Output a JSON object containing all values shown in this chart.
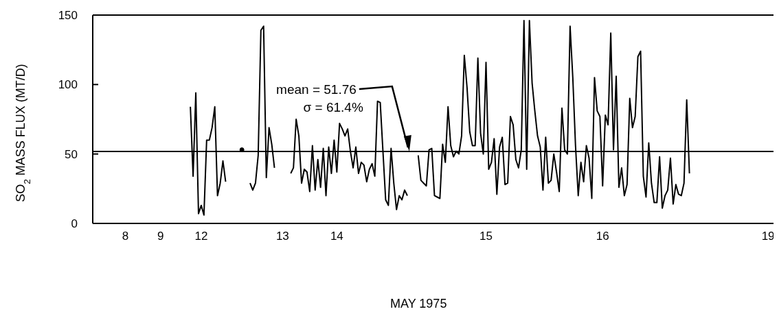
{
  "chart_data": {
    "type": "line",
    "xlabel": "MAY 1975",
    "ylabel": "SO$_{2}$ MASS FLUX (MT/D)",
    "annotations": [
      "mean = 51.76",
      "σ = 61.4%"
    ],
    "categories": [
      null,
      null,
      null,
      null,
      null,
      null,
      null,
      null,
      null,
      null,
      null,
      null,
      "8",
      null,
      null,
      null,
      null,
      null,
      null,
      null,
      null,
      null,
      null,
      null,
      null,
      "9",
      null,
      null,
      null,
      null,
      null,
      null,
      null,
      null,
      null,
      null,
      null,
      null,
      null,
      null,
      "12",
      null,
      null,
      null,
      null,
      null,
      null,
      null,
      null,
      null,
      null,
      null,
      null,
      null,
      null,
      null,
      null,
      null,
      null,
      null,
      null,
      null,
      null,
      null,
      null,
      null,
      null,
      null,
      null,
      null,
      "13",
      null,
      null,
      null,
      null,
      null,
      null,
      null,
      null,
      null,
      null,
      null,
      null,
      null,
      null,
      null,
      null,
      null,
      null,
      null,
      "14",
      null,
      null,
      null,
      null,
      null,
      null,
      null,
      null,
      null,
      null,
      null,
      null,
      null,
      null,
      null,
      null,
      null,
      null,
      null,
      null,
      null,
      null,
      null,
      null,
      null,
      null,
      null,
      null,
      null,
      null,
      null,
      null,
      null,
      null,
      null,
      null,
      null,
      null,
      null,
      null,
      null,
      null,
      null,
      null,
      null,
      null,
      null,
      null,
      null,
      null,
      null,
      null,
      null,
      null,
      "15",
      null,
      null,
      null,
      null,
      null,
      null,
      null,
      null,
      null,
      null,
      null,
      null,
      null,
      null,
      null,
      null,
      null,
      null,
      null,
      null,
      null,
      null,
      null,
      null,
      null,
      null,
      null,
      null,
      null,
      null,
      null,
      null,
      null,
      null,
      null,
      null,
      null,
      null,
      null,
      null,
      null,
      null,
      "16",
      null,
      null,
      null,
      null,
      null,
      null,
      null,
      null,
      null,
      null,
      null,
      null,
      null,
      null,
      null,
      null,
      null,
      null,
      null,
      null,
      null,
      null,
      null,
      null,
      null,
      null,
      null,
      null,
      null,
      null,
      null,
      null,
      null,
      null,
      null,
      null,
      null,
      null,
      null,
      null,
      null,
      null,
      null,
      null,
      null,
      null,
      null,
      null,
      null,
      null,
      null,
      null,
      null,
      null,
      null,
      null,
      null,
      null,
      null,
      null,
      "19",
      null,
      null
    ],
    "values": [
      null,
      null,
      null,
      null,
      null,
      null,
      null,
      null,
      null,
      null,
      null,
      null,
      null,
      null,
      null,
      null,
      null,
      null,
      null,
      null,
      null,
      null,
      null,
      null,
      null,
      null,
      null,
      null,
      null,
      null,
      null,
      null,
      null,
      null,
      null,
      null,
      84,
      34,
      94,
      7,
      13,
      6,
      60,
      60,
      69,
      84,
      20,
      29,
      45,
      30,
      null,
      null,
      null,
      null,
      null,
      53,
      null,
      null,
      29,
      24,
      29,
      49,
      139,
      142,
      33,
      69,
      57,
      40,
      null,
      null,
      null,
      null,
      null,
      36,
      40,
      75,
      63,
      29,
      39,
      37,
      23,
      56,
      24,
      46,
      26,
      54,
      20,
      55,
      36,
      60,
      37,
      72,
      68,
      63,
      68,
      52,
      40,
      55,
      36,
      44,
      42,
      30,
      39,
      43,
      34,
      88,
      87,
      52,
      17,
      13,
      54,
      29,
      10,
      20,
      17,
      24,
      20,
      null,
      null,
      null,
      49,
      31,
      29,
      27,
      53,
      54,
      20,
      19,
      18,
      57,
      44,
      84,
      56,
      48,
      52,
      50,
      63,
      121,
      98,
      66,
      56,
      56,
      119,
      65,
      50,
      116,
      39,
      44,
      61,
      21,
      55,
      62,
      28,
      29,
      77,
      71,
      46,
      40,
      53,
      146,
      39,
      146,
      101,
      81,
      63,
      55,
      24,
      62,
      29,
      31,
      50,
      37,
      23,
      83,
      53,
      50,
      142,
      105,
      56,
      20,
      44,
      30,
      56,
      47,
      18,
      105,
      81,
      77,
      27,
      78,
      71,
      137,
      53,
      106,
      26,
      40,
      20,
      28,
      90,
      69,
      77,
      120,
      124,
      34,
      19,
      58,
      29,
      15,
      15,
      48,
      11,
      20,
      24,
      47,
      14,
      28,
      21,
      20,
      29,
      89,
      36,
      null,
      null,
      null,
      null,
      null,
      null,
      null,
      null,
      null,
      null,
      null,
      null,
      null,
      null,
      null,
      null,
      null,
      null,
      null,
      null,
      null,
      null,
      null,
      null,
      null,
      null,
      null,
      null,
      null,
      null,
      null
    ],
    "color": "#000000",
    "line_style": "solid",
    "marker": "none",
    "grid": false,
    "ylim": [
      0,
      150
    ],
    "yticks": [
      0,
      50,
      100,
      150
    ],
    "ref_lines": [
      {
        "axis": "y",
        "value": 51.76,
        "label": null,
        "color": "#000000",
        "line_style": "solid"
      }
    ]
  }
}
